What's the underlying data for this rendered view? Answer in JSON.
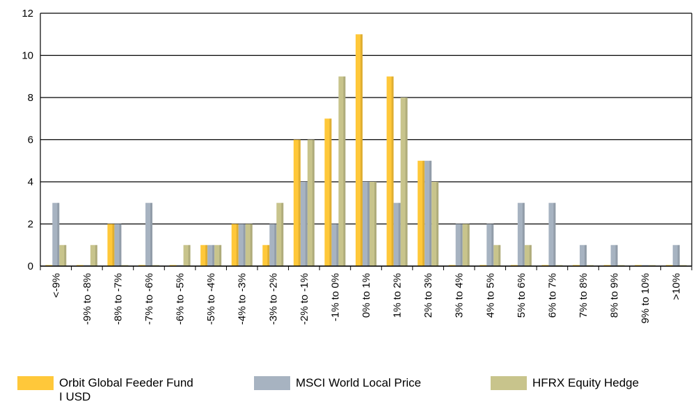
{
  "chart_data": {
    "type": "bar",
    "categories": [
      "<-9%",
      "-9% to -8%",
      "-8% to -7%",
      "-7% to -6%",
      "-6% to -5%",
      "-5% to -4%",
      "-4% to -3%",
      "-3% to -2%",
      "-2% to -1%",
      "-1% to 0%",
      "0% to 1%",
      "1% to 2%",
      "2% to 3%",
      "3% to 4%",
      "4% to 5%",
      "5% to 6%",
      "6% to 7%",
      "7% to 8%",
      "8% to 9%",
      "9% to 10%",
      ">10%"
    ],
    "series": [
      {
        "name": "Orbit Global Feeder Fund I USD",
        "color": "#FFC83A",
        "values": [
          0,
          0,
          2,
          0,
          0,
          1,
          2,
          1,
          6,
          7,
          11,
          9,
          5,
          0,
          0,
          0,
          0,
          0,
          0,
          0,
          0
        ]
      },
      {
        "name": "MSCI World Local Price",
        "color": "#A7B3C1",
        "values": [
          3,
          0,
          2,
          3,
          0,
          1,
          2,
          2,
          4,
          2,
          4,
          3,
          5,
          2,
          2,
          3,
          3,
          1,
          1,
          0,
          1
        ]
      },
      {
        "name": "HFRX Equity Hedge",
        "color": "#C8C48C",
        "values": [
          1,
          1,
          0,
          0,
          1,
          1,
          2,
          3,
          6,
          9,
          4,
          8,
          4,
          2,
          1,
          1,
          0,
          0,
          0,
          0,
          0
        ]
      }
    ],
    "yticks": [
      "0",
      "2",
      "4",
      "6",
      "8",
      "10",
      "12"
    ],
    "ylim": [
      0,
      12
    ],
    "grid": true
  }
}
